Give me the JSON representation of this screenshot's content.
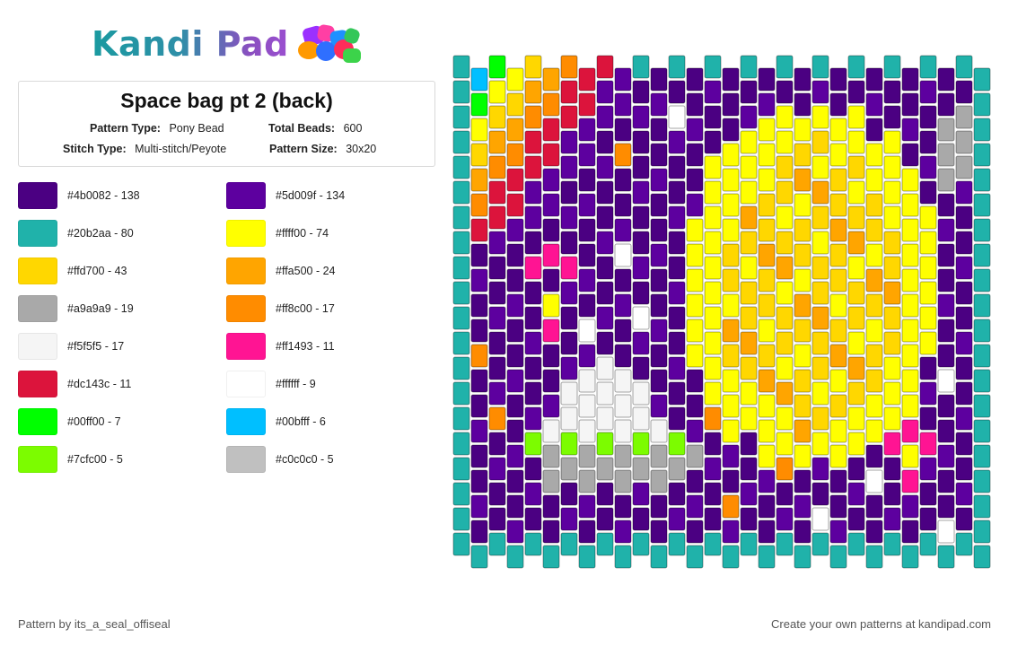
{
  "header": {
    "logo_text": "Kandi Pad",
    "logo_icon": "beads-icon"
  },
  "pattern": {
    "title": "Space bag pt 2 (back)",
    "pattern_type_label": "Pattern Type:",
    "pattern_type": "Pony Bead",
    "total_beads_label": "Total Beads:",
    "total_beads": "600",
    "stitch_type_label": "Stitch Type:",
    "stitch_type": "Multi-stitch/Peyote",
    "pattern_size_label": "Pattern Size:",
    "pattern_size": "30x20"
  },
  "legend": [
    {
      "color": "#4b0082",
      "label": "#4b0082 - 138"
    },
    {
      "color": "#5d009f",
      "label": "#5d009f - 134"
    },
    {
      "color": "#20b2aa",
      "label": "#20b2aa - 80"
    },
    {
      "color": "#ffff00",
      "label": "#ffff00 - 74"
    },
    {
      "color": "#ffd700",
      "label": "#ffd700 - 43"
    },
    {
      "color": "#ffa500",
      "label": "#ffa500 - 24"
    },
    {
      "color": "#a9a9a9",
      "label": "#a9a9a9 - 19"
    },
    {
      "color": "#ff8c00",
      "label": "#ff8c00 - 17"
    },
    {
      "color": "#f5f5f5",
      "label": "#f5f5f5 - 17"
    },
    {
      "color": "#ff1493",
      "label": "#ff1493 - 11"
    },
    {
      "color": "#dc143c",
      "label": "#dc143c - 11"
    },
    {
      "color": "#ffffff",
      "label": "#ffffff - 9"
    },
    {
      "color": "#00ff00",
      "label": "#00ff00 - 7"
    },
    {
      "color": "#00bfff",
      "label": "#00bfff - 6"
    },
    {
      "color": "#7cfc00",
      "label": "#7cfc00 - 5"
    },
    {
      "color": "#c0c0c0",
      "label": "#c0c0c0 - 5"
    }
  ],
  "footer": {
    "credit": "Pattern by its_a_seal_offiseal",
    "cta": "Create your own patterns at kandipad.com"
  }
}
